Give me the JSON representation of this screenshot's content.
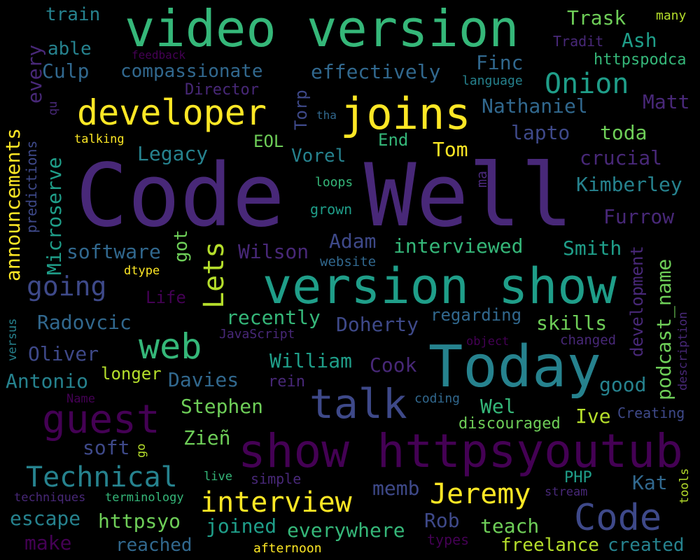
{
  "title": "Word cloud",
  "palette": {
    "background": "#000000",
    "c1": "#440154",
    "c2": "#482878",
    "c3": "#3e4989",
    "c4": "#31688e",
    "c5": "#26828e",
    "c6": "#1f9e89",
    "c7": "#35b779",
    "c8": "#6ece58",
    "c9": "#b5de2b",
    "c10": "#fde725"
  },
  "words": [
    {
      "text": "Code",
      "c": "c2"
    },
    {
      "text": "Well",
      "c": "c2"
    },
    {
      "text": "video version",
      "c": "c7"
    },
    {
      "text": "version show",
      "c": "c6"
    },
    {
      "text": "show httpsyoutub",
      "c": "c1"
    },
    {
      "text": "Today",
      "c": "c5"
    },
    {
      "text": "joins",
      "c": "c10"
    },
    {
      "text": "developer",
      "c": "c10"
    },
    {
      "text": "guest",
      "c": "c1"
    },
    {
      "text": "talk",
      "c": "c3"
    },
    {
      "text": "web",
      "c": "c7"
    },
    {
      "text": "Code",
      "c": "c3"
    },
    {
      "text": "interview",
      "c": "c10"
    },
    {
      "text": "Technical",
      "c": "c5"
    },
    {
      "text": "Jeremy",
      "c": "c10"
    },
    {
      "text": "Onion",
      "c": "c6"
    },
    {
      "text": "Lets",
      "c": "c9"
    },
    {
      "text": "going",
      "c": "c3"
    },
    {
      "text": "train",
      "c": "c5"
    },
    {
      "text": "Trask",
      "c": "c8"
    },
    {
      "text": "many",
      "c": "c9"
    },
    {
      "text": "Tradit",
      "c": "c2"
    },
    {
      "text": "Ash",
      "c": "c6"
    },
    {
      "text": "able",
      "c": "c5"
    },
    {
      "text": "feedback",
      "c": "c1"
    },
    {
      "text": "httpspodca",
      "c": "c7"
    },
    {
      "text": "Finc",
      "c": "c4"
    },
    {
      "text": "Culp",
      "c": "c4"
    },
    {
      "text": "compassionate",
      "c": "c4"
    },
    {
      "text": "effectively",
      "c": "c4"
    },
    {
      "text": "language",
      "c": "c5"
    },
    {
      "text": "Director",
      "c": "c2"
    },
    {
      "text": "Matt",
      "c": "c2"
    },
    {
      "text": "Nathaniel",
      "c": "c4"
    },
    {
      "text": "qu",
      "c": "c2"
    },
    {
      "text": "tha",
      "c": "c4"
    },
    {
      "text": "lapto",
      "c": "c3"
    },
    {
      "text": "toda",
      "c": "c8"
    },
    {
      "text": "talking",
      "c": "c10"
    },
    {
      "text": "EOL",
      "c": "c8"
    },
    {
      "text": "Vorel",
      "c": "c5"
    },
    {
      "text": "End",
      "c": "c7"
    },
    {
      "text": "Tom",
      "c": "c10"
    },
    {
      "text": "crucial",
      "c": "c2"
    },
    {
      "text": "Legacy",
      "c": "c5"
    },
    {
      "text": "Kimberley",
      "c": "c5"
    },
    {
      "text": "loops",
      "c": "c7"
    },
    {
      "text": "grown",
      "c": "c6"
    },
    {
      "text": "Furrow",
      "c": "c2"
    },
    {
      "text": "software",
      "c": "c4"
    },
    {
      "text": "Wilson",
      "c": "c2"
    },
    {
      "text": "Adam",
      "c": "c3"
    },
    {
      "text": "interviewed",
      "c": "c7"
    },
    {
      "text": "Smith",
      "c": "c6"
    },
    {
      "text": "website",
      "c": "c4"
    },
    {
      "text": "dtype",
      "c": "c10"
    },
    {
      "text": "Life",
      "c": "c1"
    },
    {
      "text": "recently",
      "c": "c7"
    },
    {
      "text": "regarding",
      "c": "c4"
    },
    {
      "text": "skills",
      "c": "c8"
    },
    {
      "text": "Radovcic",
      "c": "c4"
    },
    {
      "text": "Doherty",
      "c": "c3"
    },
    {
      "text": "JavaScript",
      "c": "c2"
    },
    {
      "text": "object",
      "c": "c1"
    },
    {
      "text": "changed",
      "c": "c2"
    },
    {
      "text": "Oliver",
      "c": "c3"
    },
    {
      "text": "William",
      "c": "c6"
    },
    {
      "text": "Cook",
      "c": "c2"
    },
    {
      "text": "good",
      "c": "c5"
    },
    {
      "text": "Antonio",
      "c": "c5"
    },
    {
      "text": "longer",
      "c": "c9"
    },
    {
      "text": "Davies",
      "c": "c4"
    },
    {
      "text": "rein",
      "c": "c2"
    },
    {
      "text": "Name",
      "c": "c1"
    },
    {
      "text": "Stephen",
      "c": "c8"
    },
    {
      "text": "coding",
      "c": "c4"
    },
    {
      "text": "Wel",
      "c": "c7"
    },
    {
      "text": "Ive",
      "c": "c9"
    },
    {
      "text": "Creating",
      "c": "c3"
    },
    {
      "text": "discouraged",
      "c": "c8"
    },
    {
      "text": "soft",
      "c": "c3"
    },
    {
      "text": "Zieñ",
      "c": "c8"
    },
    {
      "text": "live",
      "c": "c7"
    },
    {
      "text": "simple",
      "c": "c2"
    },
    {
      "text": "PHP",
      "c": "c6"
    },
    {
      "text": "Kat",
      "c": "c4"
    },
    {
      "text": "memb",
      "c": "c3"
    },
    {
      "text": "stream",
      "c": "c2"
    },
    {
      "text": "techniques",
      "c": "c2"
    },
    {
      "text": "terminology",
      "c": "c7"
    },
    {
      "text": "escape",
      "c": "c5"
    },
    {
      "text": "httpsyo",
      "c": "c8"
    },
    {
      "text": "joined",
      "c": "c6"
    },
    {
      "text": "everywhere",
      "c": "c7"
    },
    {
      "text": "Rob",
      "c": "c3"
    },
    {
      "text": "teach",
      "c": "c8"
    },
    {
      "text": "make",
      "c": "c1"
    },
    {
      "text": "reached",
      "c": "c4"
    },
    {
      "text": "afternoon",
      "c": "c10"
    },
    {
      "text": "types",
      "c": "c1"
    },
    {
      "text": "freelance",
      "c": "c9"
    },
    {
      "text": "created",
      "c": "c5"
    },
    {
      "text": "every",
      "c": "c2"
    },
    {
      "text": "announcements",
      "c": "c10"
    },
    {
      "text": "predictions",
      "c": "c3"
    },
    {
      "text": "Microserve",
      "c": "c6"
    },
    {
      "text": "versus",
      "c": "c5"
    },
    {
      "text": "got",
      "c": "c8"
    },
    {
      "text": "Torp",
      "c": "c3"
    },
    {
      "text": "ma",
      "c": "c2"
    },
    {
      "text": "go",
      "c": "c9"
    },
    {
      "text": "development",
      "c": "c2"
    },
    {
      "text": "podcast_name",
      "c": "c8"
    },
    {
      "text": "description",
      "c": "c2"
    },
    {
      "text": "tools",
      "c": "c9"
    }
  ]
}
